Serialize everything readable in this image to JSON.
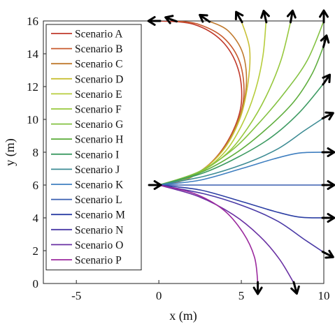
{
  "chart_data": {
    "type": "line",
    "title": "",
    "xlabel": "x (m)",
    "ylabel": "y (m)",
    "xlim": [
      -7,
      10
    ],
    "ylim": [
      0,
      16
    ],
    "x_ticks": [
      -5,
      0,
      5,
      10
    ],
    "y_ticks": [
      0,
      2,
      4,
      6,
      8,
      10,
      12,
      14,
      16
    ],
    "grid": false,
    "legend_position": "top-left",
    "start_point": [
      0,
      6
    ],
    "series": [
      {
        "name": "Scenario A",
        "color": "#c0392b",
        "end": [
          0,
          16
        ],
        "end_heading_deg": 180,
        "points": [
          [
            0,
            6
          ],
          [
            1.6,
            6.35
          ],
          [
            3.2,
            7.4
          ],
          [
            4.4,
            9.1
          ],
          [
            5.0,
            11.0
          ],
          [
            4.8,
            13.1
          ],
          [
            3.8,
            14.8
          ],
          [
            2.1,
            15.8
          ],
          [
            0,
            16
          ]
        ]
      },
      {
        "name": "Scenario B",
        "color": "#c85a2e",
        "end": [
          1,
          16
        ],
        "end_heading_deg": 160,
        "points": [
          [
            0,
            6
          ],
          [
            1.8,
            6.4
          ],
          [
            3.4,
            7.6
          ],
          [
            4.6,
            9.4
          ],
          [
            5.15,
            11.4
          ],
          [
            4.9,
            13.5
          ],
          [
            3.9,
            15.0
          ],
          [
            2.4,
            15.8
          ],
          [
            1,
            16
          ]
        ]
      },
      {
        "name": "Scenario C",
        "color": "#c07a2e",
        "end": [
          3,
          16
        ],
        "end_heading_deg": 145,
        "points": [
          [
            0,
            6
          ],
          [
            2.0,
            6.5
          ],
          [
            3.7,
            7.9
          ],
          [
            4.8,
            9.9
          ],
          [
            5.3,
            12.0
          ],
          [
            5.1,
            14.0
          ],
          [
            4.2,
            15.4
          ],
          [
            3,
            16
          ]
        ]
      },
      {
        "name": "Scenario D",
        "color": "#c8c035",
        "end": [
          5,
          16
        ],
        "end_heading_deg": 120,
        "points": [
          [
            0,
            6
          ],
          [
            2.1,
            6.6
          ],
          [
            3.8,
            8.0
          ],
          [
            4.9,
            10.0
          ],
          [
            5.4,
            12.2
          ],
          [
            5.5,
            14.3
          ],
          [
            5,
            16
          ]
        ]
      },
      {
        "name": "Scenario E",
        "color": "#b7cd3c",
        "end": [
          6.5,
          16
        ],
        "end_heading_deg": 103,
        "points": [
          [
            0,
            6
          ],
          [
            2.2,
            6.6
          ],
          [
            3.9,
            7.9
          ],
          [
            5.0,
            9.6
          ],
          [
            5.8,
            11.6
          ],
          [
            6.3,
            13.8
          ],
          [
            6.5,
            16
          ]
        ]
      },
      {
        "name": "Scenario F",
        "color": "#97c83d",
        "end": [
          8,
          16
        ],
        "end_heading_deg": 80,
        "points": [
          [
            0,
            6
          ],
          [
            2.3,
            6.7
          ],
          [
            4.1,
            7.9
          ],
          [
            5.4,
            9.5
          ],
          [
            6.5,
            11.4
          ],
          [
            7.4,
            13.6
          ],
          [
            8,
            16
          ]
        ]
      },
      {
        "name": "Scenario G",
        "color": "#84c242",
        "end": [
          10,
          16
        ],
        "end_heading_deg": 90,
        "points": [
          [
            0,
            6
          ],
          [
            2.4,
            6.8
          ],
          [
            4.4,
            8.1
          ],
          [
            6.0,
            9.7
          ],
          [
            7.6,
            11.6
          ],
          [
            9.0,
            13.6
          ],
          [
            10,
            16
          ]
        ]
      },
      {
        "name": "Scenario H",
        "color": "#5fae3e",
        "end": [
          10,
          14.5
        ],
        "end_heading_deg": 75,
        "points": [
          [
            0,
            6
          ],
          [
            2.5,
            6.75
          ],
          [
            4.6,
            7.9
          ],
          [
            6.5,
            9.4
          ],
          [
            8.2,
            11.1
          ],
          [
            9.3,
            12.8
          ],
          [
            10,
            14.5
          ]
        ]
      },
      {
        "name": "Scenario I",
        "color": "#3e9b63",
        "end": [
          10,
          12.2
        ],
        "end_heading_deg": 55,
        "points": [
          [
            0,
            6
          ],
          [
            2.6,
            6.7
          ],
          [
            4.8,
            7.7
          ],
          [
            6.8,
            8.9
          ],
          [
            8.5,
            10.4
          ],
          [
            10,
            12.2
          ]
        ]
      },
      {
        "name": "Scenario J",
        "color": "#3e8c94",
        "end": [
          10,
          10.1
        ],
        "end_heading_deg": 27,
        "points": [
          [
            0,
            6
          ],
          [
            2.8,
            6.55
          ],
          [
            5.2,
            7.3
          ],
          [
            7.2,
            8.2
          ],
          [
            8.8,
            9.3
          ],
          [
            10,
            10.1
          ]
        ]
      },
      {
        "name": "Scenario K",
        "color": "#3f7fc0",
        "end": [
          10,
          8
        ],
        "end_heading_deg": 0,
        "points": [
          [
            0,
            6
          ],
          [
            2.5,
            6.3
          ],
          [
            5.0,
            7.0
          ],
          [
            7.0,
            7.6
          ],
          [
            8.5,
            7.95
          ],
          [
            10,
            8
          ]
        ]
      },
      {
        "name": "Scenario L",
        "color": "#3a5fb0",
        "end": [
          10,
          6
        ],
        "end_heading_deg": 0,
        "points": [
          [
            0,
            6
          ],
          [
            5,
            6
          ],
          [
            10,
            6
          ]
        ]
      },
      {
        "name": "Scenario M",
        "color": "#2c3fa4",
        "end": [
          10,
          4
        ],
        "end_heading_deg": 0,
        "points": [
          [
            0,
            6
          ],
          [
            2.5,
            5.7
          ],
          [
            5.0,
            5.0
          ],
          [
            7.0,
            4.4
          ],
          [
            8.5,
            4.05
          ],
          [
            10,
            4
          ]
        ]
      },
      {
        "name": "Scenario N",
        "color": "#4a3aa6",
        "end": [
          10,
          1.9
        ],
        "end_heading_deg": -27,
        "points": [
          [
            0,
            6
          ],
          [
            2.8,
            5.45
          ],
          [
            5.2,
            4.7
          ],
          [
            7.2,
            3.8
          ],
          [
            8.8,
            2.7
          ],
          [
            10,
            1.9
          ]
        ]
      },
      {
        "name": "Scenario O",
        "color": "#6a31a3",
        "end": [
          8.2,
          0
        ],
        "end_heading_deg": -75,
        "points": [
          [
            0,
            6
          ],
          [
            2.4,
            5.3
          ],
          [
            4.5,
            4.2
          ],
          [
            6.1,
            2.9
          ],
          [
            7.3,
            1.5
          ],
          [
            8.2,
            0
          ]
        ]
      },
      {
        "name": "Scenario P",
        "color": "#9b2a9e",
        "end": [
          6,
          0
        ],
        "end_heading_deg": -90,
        "points": [
          [
            0,
            6
          ],
          [
            2.1,
            5.5
          ],
          [
            3.9,
            4.5
          ],
          [
            5.1,
            3.1
          ],
          [
            5.8,
            1.6
          ],
          [
            6,
            0
          ]
        ]
      }
    ]
  }
}
